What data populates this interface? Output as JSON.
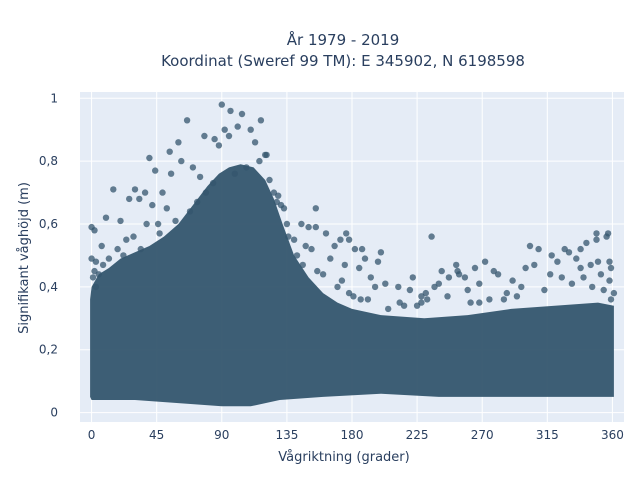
{
  "chart_data": {
    "type": "scatter",
    "title_line1": "År 1979 - 2019",
    "title_line2": "Koordinat (Sweref 99 TM): E 345902, N 6198598",
    "xlabel": "Vågriktning (grader)",
    "ylabel": "Signifikant våghöjd (m)",
    "xlim": [
      -8,
      368
    ],
    "ylim": [
      -0.03,
      1.02
    ],
    "x_ticks": [
      0,
      45,
      90,
      135,
      180,
      225,
      270,
      315,
      360
    ],
    "x_tick_labels": [
      "0",
      "45",
      "90",
      "135",
      "180",
      "225",
      "270",
      "315",
      "360"
    ],
    "y_ticks": [
      0,
      0.2,
      0.4,
      0.6,
      0.8,
      1
    ],
    "y_tick_labels": [
      "0",
      "0,2",
      "0,4",
      "0,6",
      "0,8",
      "1"
    ],
    "grid": true,
    "marker_color": "#34566e",
    "background_color": "#e5ecf6",
    "series": [
      {
        "points": [
          [
            90,
            0.98
          ],
          [
            96,
            0.96
          ],
          [
            104,
            0.95
          ],
          [
            66,
            0.93
          ],
          [
            117,
            0.93
          ],
          [
            92,
            0.9
          ],
          [
            101,
            0.91
          ],
          [
            110,
            0.9
          ],
          [
            78,
            0.88
          ],
          [
            85,
            0.87
          ],
          [
            95,
            0.88
          ],
          [
            88,
            0.85
          ],
          [
            60,
            0.86
          ],
          [
            113,
            0.86
          ],
          [
            120,
            0.82
          ],
          [
            121,
            0.82
          ],
          [
            40,
            0.81
          ],
          [
            54,
            0.83
          ],
          [
            62,
            0.8
          ],
          [
            70,
            0.78
          ],
          [
            44,
            0.77
          ],
          [
            55,
            0.76
          ],
          [
            75,
            0.75
          ],
          [
            30,
            0.71
          ],
          [
            15,
            0.71
          ],
          [
            37,
            0.7
          ],
          [
            49,
            0.7
          ],
          [
            26,
            0.68
          ],
          [
            33,
            0.68
          ],
          [
            42,
            0.66
          ],
          [
            52,
            0.65
          ],
          [
            128,
            0.67
          ],
          [
            131,
            0.66
          ],
          [
            133,
            0.65
          ],
          [
            155,
            0.65
          ],
          [
            10,
            0.62
          ],
          [
            20,
            0.61
          ],
          [
            38,
            0.6
          ],
          [
            46,
            0.6
          ],
          [
            135,
            0.6
          ],
          [
            145,
            0.6
          ],
          [
            150,
            0.59
          ],
          [
            155,
            0.59
          ],
          [
            162,
            0.57
          ],
          [
            176,
            0.57
          ],
          [
            172,
            0.55
          ],
          [
            178,
            0.55
          ],
          [
            0,
            0.59
          ],
          [
            2,
            0.58
          ],
          [
            235,
            0.56
          ],
          [
            140,
            0.55
          ],
          [
            148,
            0.53
          ],
          [
            152,
            0.52
          ],
          [
            168,
            0.53
          ],
          [
            182,
            0.52
          ],
          [
            187,
            0.52
          ],
          [
            7,
            0.53
          ],
          [
            18,
            0.52
          ],
          [
            24,
            0.55
          ],
          [
            29,
            0.56
          ],
          [
            200,
            0.51
          ],
          [
            0,
            0.49
          ],
          [
            3,
            0.48
          ],
          [
            189,
            0.49
          ],
          [
            198,
            0.48
          ],
          [
            185,
            0.46
          ],
          [
            175,
            0.47
          ],
          [
            165,
            0.49
          ],
          [
            160,
            0.44
          ],
          [
            222,
            0.43
          ],
          [
            173,
            0.42
          ],
          [
            193,
            0.43
          ],
          [
            253,
            0.45
          ],
          [
            254,
            0.44
          ],
          [
            258,
            0.43
          ],
          [
            281,
            0.44
          ],
          [
            278,
            0.45
          ],
          [
            303,
            0.53
          ],
          [
            309,
            0.52
          ],
          [
            318,
            0.5
          ],
          [
            327,
            0.52
          ],
          [
            330,
            0.51
          ],
          [
            338,
            0.52
          ],
          [
            349,
            0.57
          ],
          [
            357,
            0.57
          ],
          [
            356,
            0.56
          ],
          [
            349,
            0.55
          ],
          [
            342,
            0.54
          ],
          [
            335,
            0.49
          ],
          [
            322,
            0.48
          ],
          [
            306,
            0.47
          ],
          [
            300,
            0.46
          ],
          [
            272,
            0.48
          ],
          [
            265,
            0.46
          ],
          [
            252,
            0.47
          ],
          [
            242,
            0.45
          ],
          [
            247,
            0.43
          ],
          [
            240,
            0.41
          ],
          [
            237,
            0.4
          ],
          [
            231,
            0.38
          ],
          [
            220,
            0.39
          ],
          [
            212,
            0.4
          ],
          [
            203,
            0.41
          ],
          [
            196,
            0.4
          ],
          [
            213,
            0.35
          ],
          [
            225,
            0.34
          ],
          [
            216,
            0.34
          ],
          [
            205,
            0.33
          ],
          [
            181,
            0.37
          ],
          [
            186,
            0.36
          ],
          [
            260,
            0.39
          ],
          [
            287,
            0.38
          ],
          [
            294,
            0.37
          ],
          [
            313,
            0.39
          ],
          [
            346,
            0.4
          ],
          [
            354,
            0.39
          ],
          [
            361,
            0.38
          ],
          [
            359,
            0.36
          ],
          [
            358,
            0.42
          ],
          [
            359,
            0.46
          ],
          [
            358,
            0.48
          ],
          [
            2,
            0.45
          ],
          [
            1,
            0.43
          ],
          [
            3,
            0.4
          ],
          [
            5,
            0.44
          ],
          [
            8,
            0.47
          ],
          [
            12,
            0.49
          ],
          [
            22,
            0.5
          ],
          [
            34,
            0.52
          ],
          [
            47,
            0.57
          ],
          [
            58,
            0.61
          ],
          [
            68,
            0.64
          ],
          [
            73,
            0.67
          ],
          [
            79,
            0.7
          ],
          [
            84,
            0.73
          ],
          [
            99,
            0.76
          ],
          [
            107,
            0.78
          ],
          [
            116,
            0.8
          ],
          [
            123,
            0.74
          ],
          [
            126,
            0.7
          ],
          [
            129,
            0.69
          ],
          [
            136,
            0.56
          ],
          [
            142,
            0.5
          ],
          [
            146,
            0.47
          ],
          [
            156,
            0.45
          ],
          [
            170,
            0.4
          ],
          [
            178,
            0.38
          ],
          [
            191,
            0.36
          ],
          [
            228,
            0.35
          ],
          [
            232,
            0.36
          ],
          [
            262,
            0.35
          ],
          [
            268,
            0.35
          ],
          [
            275,
            0.36
          ],
          [
            285,
            0.36
          ],
          [
            297,
            0.4
          ],
          [
            325,
            0.43
          ],
          [
            332,
            0.41
          ],
          [
            340,
            0.43
          ],
          [
            352,
            0.44
          ],
          [
            350,
            0.48
          ],
          [
            345,
            0.47
          ],
          [
            338,
            0.46
          ],
          [
            317,
            0.44
          ],
          [
            291,
            0.42
          ],
          [
            268,
            0.41
          ],
          [
            246,
            0.37
          ],
          [
            228,
            0.37
          ]
        ]
      }
    ]
  }
}
